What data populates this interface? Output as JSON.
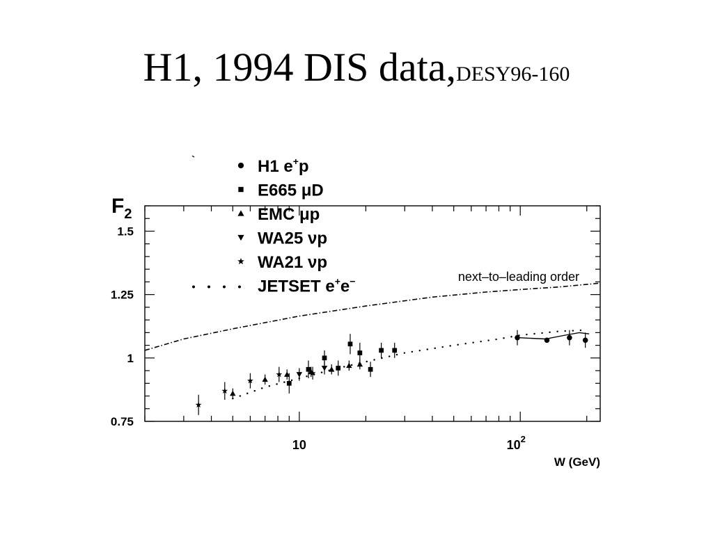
{
  "slide": {
    "title": "H1, 1994 DIS data,",
    "title_ref": "DESY96-160"
  },
  "colors": {
    "ink": "#000000",
    "background": "#ffffff"
  },
  "chart_data": {
    "type": "scatter",
    "title": "",
    "ylabel": "F",
    "ylabel_subscript": "2",
    "xlabel": "W (GeV)",
    "xscale": "log",
    "xlim": [
      2,
      230
    ],
    "ylim": [
      0.75,
      1.6
    ],
    "yticks": [
      {
        "value": 0.75,
        "label": "0.75"
      },
      {
        "value": 1.0,
        "label": "1"
      },
      {
        "value": 1.25,
        "label": "1.25"
      },
      {
        "value": 1.5,
        "label": "1.5"
      }
    ],
    "xticks": [
      {
        "value": 10,
        "label": "10"
      },
      {
        "value": 100,
        "label": "10",
        "exponent": "2"
      }
    ],
    "legend_position": "top-left",
    "curve_annotation": "next–to–leading order",
    "legend": [
      {
        "marker": "circle",
        "label": "H1 e",
        "sup": "+",
        "tail": "p"
      },
      {
        "marker": "square",
        "label": "E665 μD",
        "sup": "",
        "tail": ""
      },
      {
        "marker": "triangle-up",
        "label": "EMC μp",
        "sup": "",
        "tail": ""
      },
      {
        "marker": "triangle-down",
        "label": "WA25 νp",
        "sup": "",
        "tail": ""
      },
      {
        "marker": "star",
        "label": "WA21 νp",
        "sup": "",
        "tail": ""
      },
      {
        "marker": "dots",
        "label": "JETSET e",
        "sup": "+",
        "tail": "e",
        "sup2": "−"
      }
    ],
    "series": [
      {
        "name": "H1 e+p",
        "marker": "circle",
        "points": [
          [
            97,
            1.08,
            0.03
          ],
          [
            132,
            1.07,
            0.0
          ],
          [
            167,
            1.08,
            0.03
          ],
          [
            197,
            1.07,
            0.03
          ]
        ]
      },
      {
        "name": "E665 μD",
        "marker": "square",
        "points": [
          [
            9.0,
            0.9,
            0.04
          ],
          [
            11.0,
            0.955,
            0.035
          ],
          [
            13.0,
            1.0,
            0.03
          ],
          [
            15.0,
            0.96,
            0.03
          ],
          [
            17.0,
            1.055,
            0.04
          ],
          [
            18.8,
            1.02,
            0.04
          ],
          [
            21.0,
            0.955,
            0.03
          ],
          [
            23.5,
            1.03,
            0.03
          ],
          [
            27.0,
            1.03,
            0.03
          ]
        ]
      },
      {
        "name": "EMC μp",
        "marker": "triangle-up",
        "points": [
          [
            5.0,
            0.86,
            0.02
          ],
          [
            7.0,
            0.915,
            0.02
          ],
          [
            8.8,
            0.935,
            0.02
          ],
          [
            11.3,
            0.945,
            0.02
          ],
          [
            14.0,
            0.955,
            0.02
          ],
          [
            16.8,
            0.97,
            0.02
          ],
          [
            18.8,
            0.975,
            0.02
          ]
        ]
      },
      {
        "name": "WA25 νp",
        "marker": "triangle-down",
        "points": [
          [
            10.0,
            0.935,
            0.025
          ],
          [
            13.0,
            0.96,
            0.025
          ]
        ]
      },
      {
        "name": "WA21 νp",
        "marker": "star",
        "points": [
          [
            3.5,
            0.815,
            0.04
          ],
          [
            4.6,
            0.87,
            0.035
          ],
          [
            6.0,
            0.91,
            0.03
          ],
          [
            8.1,
            0.935,
            0.03
          ],
          [
            11.5,
            0.94,
            0.025
          ]
        ]
      }
    ],
    "curves": [
      {
        "name": "next-to-leading order",
        "style": "dash-dot",
        "points": [
          [
            2,
            1.03
          ],
          [
            3,
            1.075
          ],
          [
            5,
            1.115
          ],
          [
            10,
            1.165
          ],
          [
            20,
            1.205
          ],
          [
            40,
            1.24
          ],
          [
            70,
            1.26
          ],
          [
            100,
            1.27
          ],
          [
            150,
            1.28
          ],
          [
            230,
            1.295
          ]
        ]
      },
      {
        "name": "JETSET e+e-",
        "style": "dotted",
        "points": [
          [
            5.0,
            0.84
          ],
          [
            7.0,
            0.885
          ],
          [
            10.0,
            0.92
          ],
          [
            15.0,
            0.96
          ],
          [
            20.0,
            0.985
          ],
          [
            30.0,
            1.02
          ],
          [
            50.0,
            1.05
          ],
          [
            80.0,
            1.075
          ],
          [
            100.0,
            1.09
          ],
          [
            150.0,
            1.105
          ],
          [
            200.0,
            1.11
          ]
        ]
      },
      {
        "name": "H1 fit",
        "style": "solid",
        "points": [
          [
            97,
            1.08
          ],
          [
            130,
            1.075
          ],
          [
            160,
            1.09
          ],
          [
            185,
            1.1
          ],
          [
            205,
            1.095
          ]
        ]
      }
    ]
  }
}
